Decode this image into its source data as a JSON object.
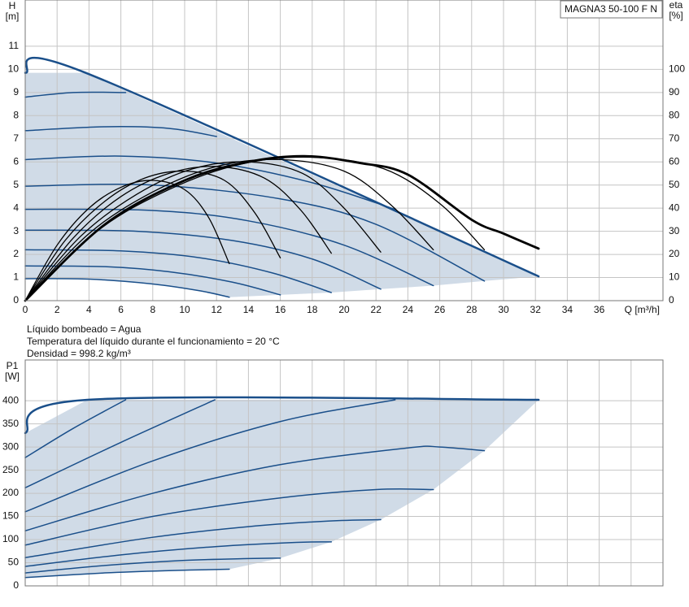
{
  "notes": [
    "Líquido bombeado = Agua",
    "Temperatura del líquido durante el funcionamiento = 20 °C",
    "Densidad = 998.2 kg/m³"
  ],
  "chart_data": [
    {
      "type": "line",
      "title": "MAGNA3 50-100 F N",
      "ylabel": "H",
      "yunit": "[m]",
      "y2label": "eta",
      "y2unit": "[%]",
      "xlabel": "Q [m³/h]",
      "xlim": [
        0,
        40
      ],
      "xticks": [
        0,
        2,
        4,
        6,
        8,
        10,
        12,
        14,
        16,
        18,
        20,
        22,
        24,
        26,
        28,
        30,
        32,
        34,
        36
      ],
      "show_xtick_labels": true,
      "ylim": [
        0,
        13
      ],
      "yticks": [
        0,
        1,
        2,
        3,
        4,
        5,
        6,
        7,
        8,
        9,
        10,
        11
      ],
      "y2lim": [
        0,
        130
      ],
      "y2ticks": [
        0,
        10,
        20,
        30,
        40,
        50,
        60,
        70,
        80,
        90,
        100
      ],
      "grid": true,
      "fill": "#d0dbe7",
      "series": [
        {
          "color": "#1a4f8a",
          "width": 2.5,
          "x": [
            0,
            3.8,
            32.2
          ],
          "values": [
            9.85,
            9.85,
            1.05
          ]
        },
        {
          "color": "#1a4f8a",
          "width": 1.5,
          "x": [
            0,
            3,
            6.3
          ],
          "values": [
            8.8,
            9.0,
            9.0
          ]
        },
        {
          "color": "#1a4f8a",
          "width": 1.5,
          "x": [
            0,
            5,
            9,
            12
          ],
          "values": [
            7.35,
            7.52,
            7.45,
            7.1
          ]
        },
        {
          "color": "#1a4f8a",
          "width": 1.5,
          "x": [
            0,
            6,
            12,
            18,
            23.2
          ],
          "values": [
            6.1,
            6.25,
            5.95,
            5.1,
            3.95
          ]
        },
        {
          "color": "#1a4f8a",
          "width": 1.5,
          "x": [
            0,
            8,
            16,
            22,
            28.8
          ],
          "values": [
            4.95,
            5.0,
            4.4,
            3.3,
            0.85
          ]
        },
        {
          "color": "#1a4f8a",
          "width": 1.5,
          "x": [
            0,
            8,
            14,
            20,
            25.6
          ],
          "values": [
            3.95,
            3.9,
            3.45,
            2.4,
            0.65
          ]
        },
        {
          "color": "#1a4f8a",
          "width": 1.5,
          "x": [
            0,
            7,
            13,
            18,
            22.3
          ],
          "values": [
            3.05,
            3.0,
            2.6,
            1.8,
            0.5
          ]
        },
        {
          "color": "#1a4f8a",
          "width": 1.5,
          "x": [
            0,
            6,
            11,
            15.5,
            19.2
          ],
          "values": [
            2.2,
            2.15,
            1.85,
            1.2,
            0.35
          ]
        },
        {
          "color": "#1a4f8a",
          "width": 1.5,
          "x": [
            0,
            5,
            9,
            13,
            16
          ],
          "values": [
            1.5,
            1.47,
            1.25,
            0.8,
            0.25
          ]
        },
        {
          "color": "#1a4f8a",
          "width": 1.5,
          "x": [
            0,
            4,
            8,
            11,
            12.8
          ],
          "values": [
            0.95,
            0.93,
            0.72,
            0.42,
            0.15
          ]
        },
        {
          "color": "#000000",
          "width": 1.3,
          "axis": "y2",
          "x": [
            0,
            2,
            4,
            6,
            8,
            10,
            11.5,
            12.8
          ],
          "values": [
            0,
            24,
            40,
            49,
            52,
            48,
            36,
            16
          ]
        },
        {
          "color": "#000000",
          "width": 1.3,
          "axis": "y2",
          "x": [
            0,
            2.5,
            5,
            7.5,
            10,
            12.5,
            14.4,
            16
          ],
          "values": [
            0,
            26,
            43,
            53,
            56,
            52,
            38,
            18.5
          ]
        },
        {
          "color": "#000000",
          "width": 1.3,
          "axis": "y2",
          "x": [
            0,
            3,
            6,
            9,
            12,
            15,
            17.3,
            19.2
          ],
          "values": [
            0,
            27,
            45,
            55,
            58,
            53,
            39,
            20.5
          ]
        },
        {
          "color": "#000000",
          "width": 1.3,
          "axis": "y2",
          "x": [
            0,
            3.5,
            7,
            10.5,
            14,
            17.4,
            20,
            22.3
          ],
          "values": [
            0,
            28,
            46,
            57,
            60,
            55,
            40,
            21
          ]
        },
        {
          "color": "#000000",
          "width": 1.3,
          "axis": "y2",
          "x": [
            0,
            4,
            8,
            12,
            16,
            20,
            23,
            25.6
          ],
          "values": [
            0,
            29,
            47,
            58,
            61,
            56,
            41,
            22
          ]
        },
        {
          "color": "#000000",
          "width": 1.3,
          "axis": "y2",
          "x": [
            0,
            4.5,
            9,
            13.5,
            18,
            22.5,
            26,
            28.8
          ],
          "values": [
            0,
            30,
            48,
            59,
            62,
            57,
            42,
            22
          ]
        },
        {
          "color": "#000000",
          "width": 2.8,
          "axis": "y2",
          "x": [
            0,
            5,
            10,
            14,
            17.5,
            21,
            24,
            28,
            30,
            32.2
          ],
          "values": [
            0,
            33,
            52,
            60,
            62.5,
            59.5,
            54.5,
            35,
            29,
            22.5
          ]
        }
      ]
    },
    {
      "type": "line",
      "ylabel": "P1",
      "yunit": "[W]",
      "xlim": [
        0,
        40
      ],
      "xticks": [
        0,
        2,
        4,
        6,
        8,
        10,
        12,
        14,
        16,
        18,
        20,
        22,
        24,
        26,
        28,
        30,
        32,
        34,
        36,
        38
      ],
      "show_xtick_labels": false,
      "ylim": [
        0,
        488
      ],
      "yticks": [
        0,
        50,
        100,
        150,
        200,
        250,
        300,
        350,
        400
      ],
      "grid": true,
      "fill": "#d0dbe7",
      "series": [
        {
          "color": "#1a4f8a",
          "width": 2.5,
          "x": [
            0,
            3.9,
            32.2
          ],
          "values": [
            330,
            402,
            402
          ]
        },
        {
          "color": "#1a4f8a",
          "width": 1.5,
          "x": [
            0,
            3,
            6.3
          ],
          "values": [
            277,
            340,
            402
          ]
        },
        {
          "color": "#1a4f8a",
          "width": 1.5,
          "x": [
            0,
            6,
            11.9
          ],
          "values": [
            212,
            310,
            402
          ]
        },
        {
          "color": "#1a4f8a",
          "width": 1.5,
          "x": [
            0,
            8,
            16,
            23.2
          ],
          "values": [
            160,
            270,
            355,
            402
          ]
        },
        {
          "color": "#1a4f8a",
          "width": 1.5,
          "x": [
            0,
            8,
            16,
            24,
            26,
            28.8
          ],
          "values": [
            119,
            200,
            262,
            298,
            300,
            292
          ]
        },
        {
          "color": "#1a4f8a",
          "width": 1.5,
          "x": [
            0,
            8,
            16,
            22,
            25.6
          ],
          "values": [
            88,
            150,
            190,
            208,
            208
          ]
        },
        {
          "color": "#1a4f8a",
          "width": 1.5,
          "x": [
            0,
            8,
            14,
            19,
            22.3
          ],
          "values": [
            61,
            105,
            128,
            140,
            143
          ]
        },
        {
          "color": "#1a4f8a",
          "width": 1.5,
          "x": [
            0,
            6,
            12,
            17,
            19.2
          ],
          "values": [
            42,
            67,
            85,
            94,
            95
          ]
        },
        {
          "color": "#1a4f8a",
          "width": 1.5,
          "x": [
            0,
            5,
            10,
            14,
            16
          ],
          "values": [
            28,
            44,
            55,
            59,
            60
          ]
        },
        {
          "color": "#1a4f8a",
          "width": 1.5,
          "x": [
            0,
            5,
            9,
            12.8
          ],
          "values": [
            18,
            28,
            33,
            36
          ]
        }
      ]
    }
  ]
}
